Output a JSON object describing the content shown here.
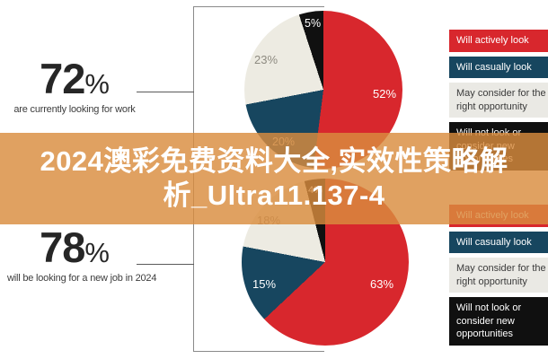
{
  "stats": [
    {
      "value": "72",
      "unit": "%",
      "caption": "are currently looking for work"
    },
    {
      "value": "78",
      "unit": "%",
      "caption": "will be looking for a new job in 2024"
    }
  ],
  "banner": {
    "line1": "2024澳彩免费资料大全,实效性策略解",
    "line2": "析_Ultra11.137-4",
    "overlay_color": "rgba(217,140,62,0.82)",
    "text_color": "#ffffff"
  },
  "legend": {
    "items": [
      {
        "label": "Will actively look",
        "bg": "#d8272d",
        "text": "#ffffff"
      },
      {
        "label": "Will casually look",
        "bg": "#17465f",
        "text": "#ffffff"
      },
      {
        "label": "May consider for the right opportunity",
        "bg": "#eae9e4",
        "text": "#3a3a3a"
      },
      {
        "label": "Will not look or consider new opportunities",
        "bg": "#101010",
        "text": "#ffffff"
      }
    ]
  },
  "chart_data": [
    {
      "type": "pie",
      "stat_ref": "72% are currently looking for work",
      "slices": [
        {
          "label": "Will actively look",
          "value": 52,
          "color": "#d8272d"
        },
        {
          "label": "Will casually look",
          "value": 20,
          "color": "#17465f"
        },
        {
          "label": "May consider for the right opportunity",
          "value": 23,
          "color": "#edebe2"
        },
        {
          "label": "Will not look or consider new opportunities",
          "value": 5,
          "color": "#101010"
        }
      ],
      "display_labels": [
        "52%",
        "20%",
        "23%",
        "5%"
      ]
    },
    {
      "type": "pie",
      "stat_ref": "78% will be looking for a new job in 2024",
      "slices": [
        {
          "label": "Will actively look",
          "value": 63,
          "color": "#d8272d"
        },
        {
          "label": "Will casually look",
          "value": 15,
          "color": "#17465f"
        },
        {
          "label": "May consider for the right opportunity",
          "value": 18,
          "color": "#edebe2"
        },
        {
          "label": "Will not look or consider new opportunities",
          "value": 4,
          "color": "#101010"
        }
      ],
      "display_labels": [
        "63%",
        "15%",
        "18%",
        "4%"
      ]
    }
  ],
  "colors": {
    "box_border": "#8a8a8a",
    "connector": "#5a5a5a",
    "stat_text": "#262626"
  }
}
